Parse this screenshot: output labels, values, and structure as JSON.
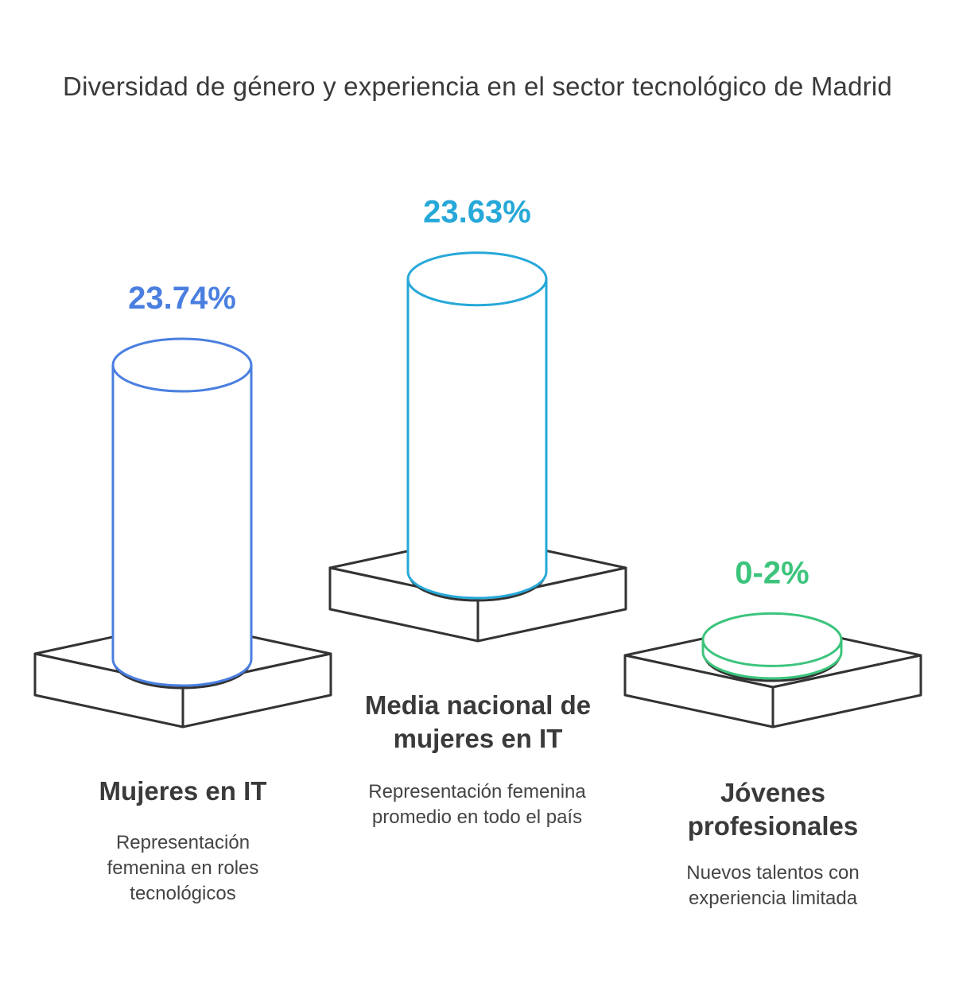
{
  "chart_data": {
    "type": "bar",
    "title": "Diversidad de género y experiencia en el sector tecnológico de Madrid",
    "categories": [
      "Mujeres en IT",
      "Media nacional de mujeres en IT",
      "Jóvenes profesionales"
    ],
    "values": [
      23.74,
      23.63,
      1
    ],
    "value_labels": [
      "23.74%",
      "23.63%",
      "0-2%"
    ],
    "descriptions": [
      "Representación femenina en roles tecnológicos",
      "Representación femenina promedio en todo el país",
      "Nuevos talentos con experiencia limitada"
    ],
    "colors": [
      "#4a7fe0",
      "#26a8d8",
      "#3cc47c"
    ]
  }
}
